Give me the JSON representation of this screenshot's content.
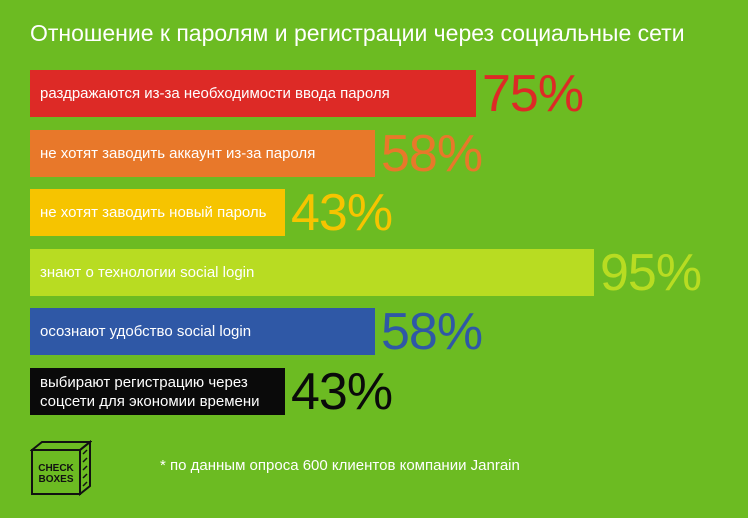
{
  "title": "Отношение к паролям и регистрации через социальные сети",
  "chart_data": {
    "type": "bar",
    "orientation": "horizontal",
    "title": "Отношение к паролям и регистрации через социальные сети",
    "categories": [
      "раздражаются из-за необходимости ввода пароля",
      "не хотят заводить аккаунт из-за пароля",
      "не хотят заводить новый пароль",
      "знают о технологии social login",
      "осознают удобство social login",
      "выбирают регистрацию через\nсоцсети для экономии времени"
    ],
    "values": [
      75,
      58,
      43,
      95,
      58,
      43
    ],
    "value_labels": [
      "75%",
      "58%",
      "43%",
      "95%",
      "58%",
      "43%"
    ],
    "bar_colors": [
      "#dd2a26",
      "#e8782a",
      "#f6c400",
      "#b8dc22",
      "#2f58a6",
      "#0a0a0a"
    ],
    "label_colors": [
      "#dd2a26",
      "#e8782a",
      "#f6c400",
      "#b8dc22",
      "#2f58a6",
      "#0a0a0a"
    ],
    "xlim": [
      0,
      100
    ],
    "grid": false
  },
  "logo_text": [
    "CHECK",
    "BOXES"
  ],
  "footnote": "* по данным опроса 600 клиентов компании Janrain",
  "colors": {
    "background": "#6cbb22",
    "text": "#ffffff"
  }
}
